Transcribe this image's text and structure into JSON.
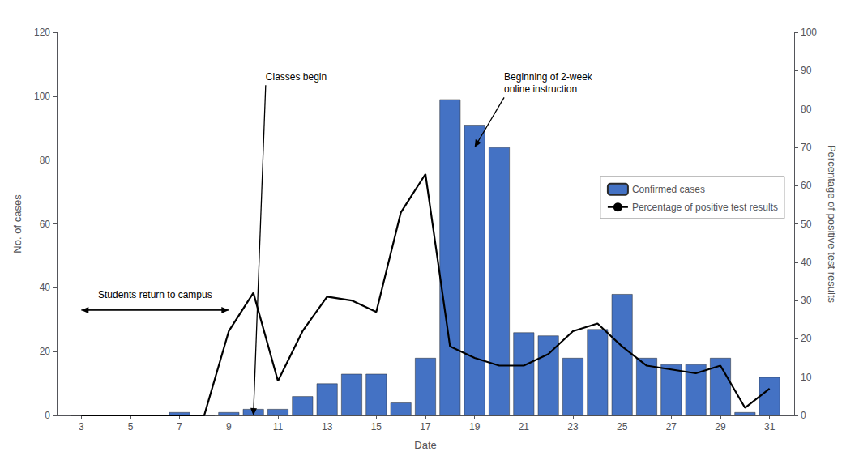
{
  "chart_data": {
    "type": "bar",
    "x": [
      3,
      4,
      5,
      6,
      7,
      8,
      9,
      10,
      11,
      12,
      13,
      14,
      15,
      16,
      17,
      18,
      19,
      20,
      21,
      22,
      23,
      24,
      25,
      26,
      27,
      28,
      29,
      30,
      31
    ],
    "series": [
      {
        "name": "Confirmed cases",
        "type": "bar",
        "color": "#4472C4",
        "values": [
          0,
          0,
          0,
          0,
          1,
          0,
          1,
          2,
          2,
          6,
          10,
          13,
          13,
          4,
          18,
          99,
          91,
          84,
          26,
          25,
          18,
          27,
          38,
          18,
          16,
          16,
          18,
          1,
          12
        ]
      },
      {
        "name": "Percentage of positive test results",
        "type": "line",
        "color": "#000000",
        "axis": "y2",
        "values": [
          0,
          0,
          0,
          0,
          0,
          0,
          22,
          32,
          9,
          22,
          31,
          30,
          27,
          53,
          63,
          18,
          15,
          13,
          13,
          16,
          22,
          24,
          18,
          13,
          12,
          11,
          13,
          2,
          7
        ]
      }
    ],
    "xlabel": "Date",
    "ylabel": "No. of cases",
    "y2label": "Percentage of positive test results",
    "xlim": [
      2,
      32
    ],
    "xticks": [
      3,
      5,
      7,
      9,
      11,
      13,
      15,
      17,
      19,
      21,
      23,
      25,
      27,
      29,
      31
    ],
    "ylim": [
      0,
      120
    ],
    "yticks": [
      0,
      20,
      40,
      60,
      80,
      100,
      120
    ],
    "y2lim": [
      0,
      100
    ],
    "y2ticks": [
      0,
      10,
      20,
      30,
      40,
      50,
      60,
      70,
      80,
      90,
      100
    ],
    "grid": false,
    "legend": "right",
    "annotations": [
      {
        "text": "Students return to campus",
        "text_x": 6,
        "text_y": 36,
        "arrows": [
          [
            [
              9,
              33
            ],
            [
              3,
              33
            ]
          ],
          [
            [
              3,
              33
            ],
            [
              9,
              33
            ]
          ]
        ]
      },
      {
        "text": "Classes begin",
        "text_x": 10.5,
        "text_y": 108,
        "arrows": [
          [
            [
              10.5,
              108
            ],
            [
              10,
              0
            ]
          ]
        ]
      },
      {
        "text": "Beginning of 2-week\nonline instruction",
        "text_x": 20.2,
        "text_y": 108,
        "arrows": [
          [
            [
              20.2,
              108
            ],
            [
              19,
              84
            ]
          ]
        ]
      }
    ]
  }
}
